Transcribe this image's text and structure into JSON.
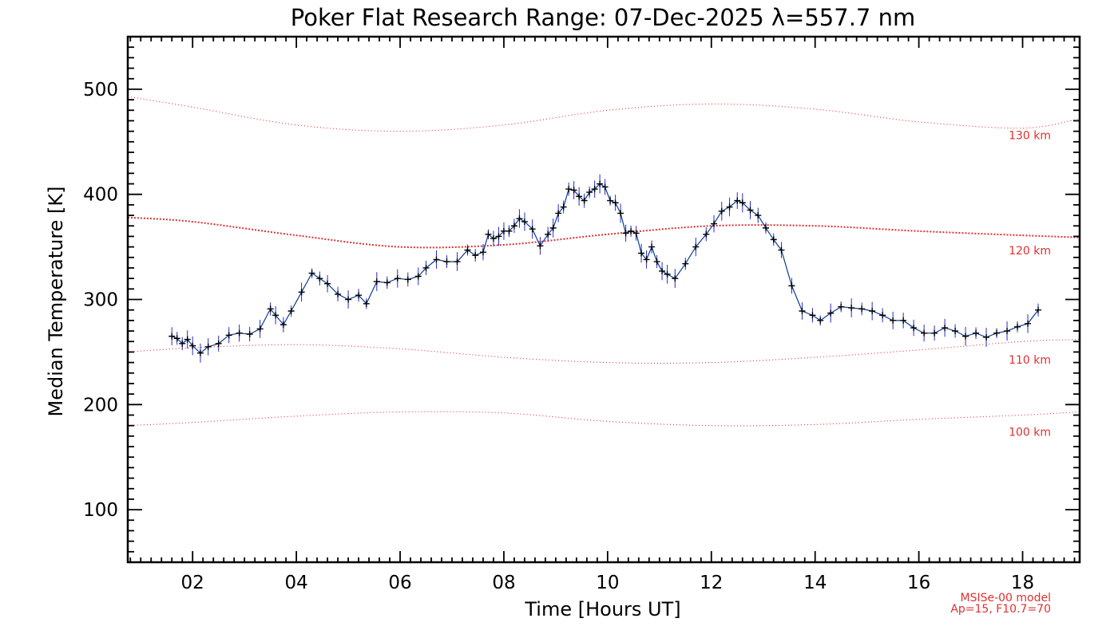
{
  "chart_data": {
    "type": "line",
    "title": "Poker Flat Research Range: 07-Dec-2025 λ=557.7 nm",
    "xlabel": "Time [Hours UT]",
    "ylabel": "Median Temperature [K]",
    "xlim": [
      0.75,
      19.1
    ],
    "ylim": [
      50,
      550
    ],
    "x_ticks": [
      2,
      4,
      6,
      8,
      10,
      12,
      14,
      16,
      18
    ],
    "x_tick_labels": [
      "02",
      "04",
      "06",
      "08",
      "10",
      "12",
      "14",
      "16",
      "18"
    ],
    "y_ticks": [
      100,
      200,
      300,
      400,
      500
    ],
    "y_tick_labels": [
      "100",
      "200",
      "300",
      "400",
      "500"
    ],
    "colors": {
      "data_line": "#0b3d91",
      "markers": "#000000",
      "errorbars": "#2a2ad0",
      "model": "#e03030",
      "axes": "#000000"
    },
    "series": [
      {
        "name": "Median Temperature",
        "x": [
          1.6,
          1.7,
          1.8,
          1.9,
          2.0,
          2.15,
          2.3,
          2.5,
          2.7,
          2.9,
          3.1,
          3.3,
          3.5,
          3.6,
          3.75,
          3.9,
          4.1,
          4.3,
          4.45,
          4.6,
          4.8,
          5.0,
          5.2,
          5.35,
          5.55,
          5.75,
          5.95,
          6.15,
          6.35,
          6.5,
          6.7,
          6.9,
          7.1,
          7.3,
          7.45,
          7.6,
          7.7,
          7.8,
          7.9,
          8.0,
          8.1,
          8.2,
          8.3,
          8.4,
          8.55,
          8.7,
          8.85,
          8.95,
          9.05,
          9.15,
          9.25,
          9.35,
          9.45,
          9.55,
          9.65,
          9.75,
          9.85,
          9.95,
          10.05,
          10.15,
          10.25,
          10.35,
          10.45,
          10.55,
          10.65,
          10.75,
          10.85,
          10.95,
          11.05,
          11.15,
          11.3,
          11.5,
          11.7,
          11.9,
          12.05,
          12.2,
          12.35,
          12.5,
          12.6,
          12.75,
          12.9,
          13.05,
          13.2,
          13.35,
          13.55,
          13.75,
          13.95,
          14.1,
          14.3,
          14.5,
          14.7,
          14.9,
          15.1,
          15.3,
          15.5,
          15.7,
          15.9,
          16.1,
          16.3,
          16.5,
          16.7,
          16.9,
          17.1,
          17.3,
          17.5,
          17.7,
          17.9,
          18.1,
          18.3
        ],
        "values": [
          265,
          263,
          258,
          262,
          256,
          249,
          255,
          258,
          266,
          268,
          267,
          272,
          291,
          285,
          276,
          289,
          307,
          325,
          320,
          315,
          305,
          300,
          304,
          296,
          317,
          316,
          320,
          319,
          322,
          330,
          338,
          336,
          336,
          347,
          342,
          345,
          362,
          358,
          360,
          365,
          365,
          370,
          377,
          374,
          367,
          351,
          362,
          368,
          382,
          388,
          405,
          404,
          398,
          394,
          402,
          405,
          410,
          407,
          394,
          392,
          382,
          363,
          365,
          363,
          344,
          338,
          350,
          336,
          327,
          324,
          320,
          334,
          350,
          362,
          372,
          384,
          388,
          394,
          392,
          385,
          380,
          368,
          357,
          347,
          313,
          289,
          285,
          280,
          287,
          293,
          292,
          291,
          289,
          285,
          280,
          280,
          273,
          268,
          268,
          273,
          270,
          265,
          268,
          264,
          268,
          270,
          274,
          277,
          290
        ]
      }
    ],
    "model_curves": [
      {
        "label": "130 km",
        "x": [
          0.75,
          2,
          4,
          6,
          8,
          10,
          12,
          14,
          16,
          18,
          19.1
        ],
        "values": [
          493,
          483,
          466,
          460,
          466,
          480,
          486,
          481,
          469,
          463,
          472
        ]
      },
      {
        "label": "120 km",
        "x": [
          0.75,
          2,
          4,
          6,
          8,
          10,
          12,
          14,
          16,
          18,
          19.1
        ],
        "values": [
          378,
          374,
          361,
          350,
          352,
          362,
          370,
          370,
          365,
          361,
          359
        ]
      },
      {
        "label": "110 km",
        "x": [
          0.75,
          2,
          4,
          6,
          8,
          10,
          12,
          14,
          16,
          18,
          19.1
        ],
        "values": [
          250,
          254,
          257,
          253,
          245,
          240,
          240,
          245,
          252,
          260,
          262
        ]
      },
      {
        "label": "100 km",
        "x": [
          0.75,
          2,
          4,
          6,
          8,
          10,
          12,
          14,
          16,
          18,
          19.1
        ],
        "values": [
          180,
          183,
          189,
          193,
          192,
          184,
          180,
          181,
          186,
          190,
          193
        ]
      }
    ],
    "annotations": [
      "MSISe-00 model",
      "Ap=15, F10.7=70"
    ]
  }
}
